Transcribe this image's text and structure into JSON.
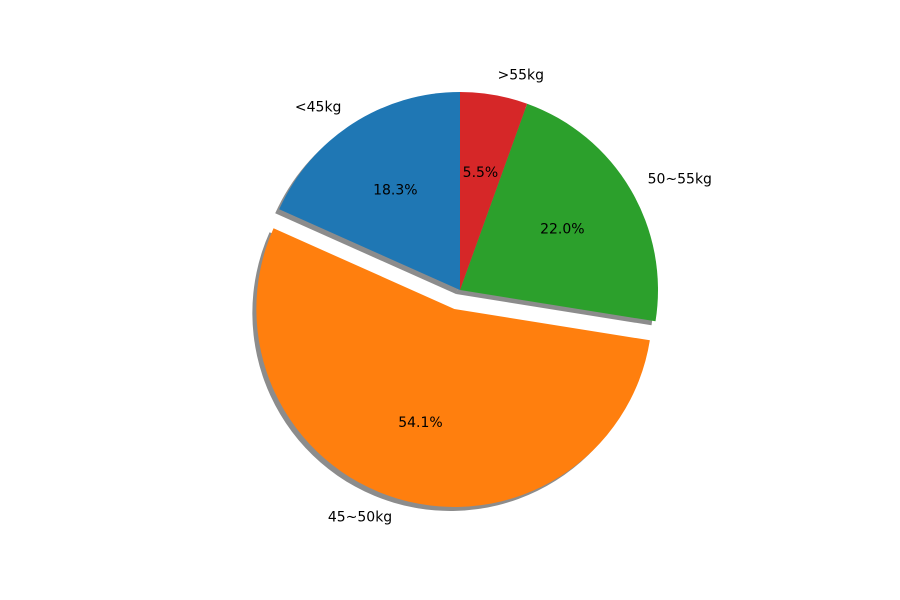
{
  "chart_data": {
    "type": "pie",
    "categories": [
      "<45kg",
      "45~50kg",
      "50~55kg",
      ">55kg"
    ],
    "values": [
      18.3,
      54.1,
      22.0,
      5.5
    ],
    "value_labels": [
      "18.3%",
      "54.1%",
      "22.0%",
      "5.5%"
    ],
    "colors": [
      "#1f77b4",
      "#ff7f0e",
      "#2ca02c",
      "#d62728"
    ],
    "explode": [
      0,
      0.1,
      0,
      0
    ],
    "startangle": 90,
    "shadow": true
  }
}
